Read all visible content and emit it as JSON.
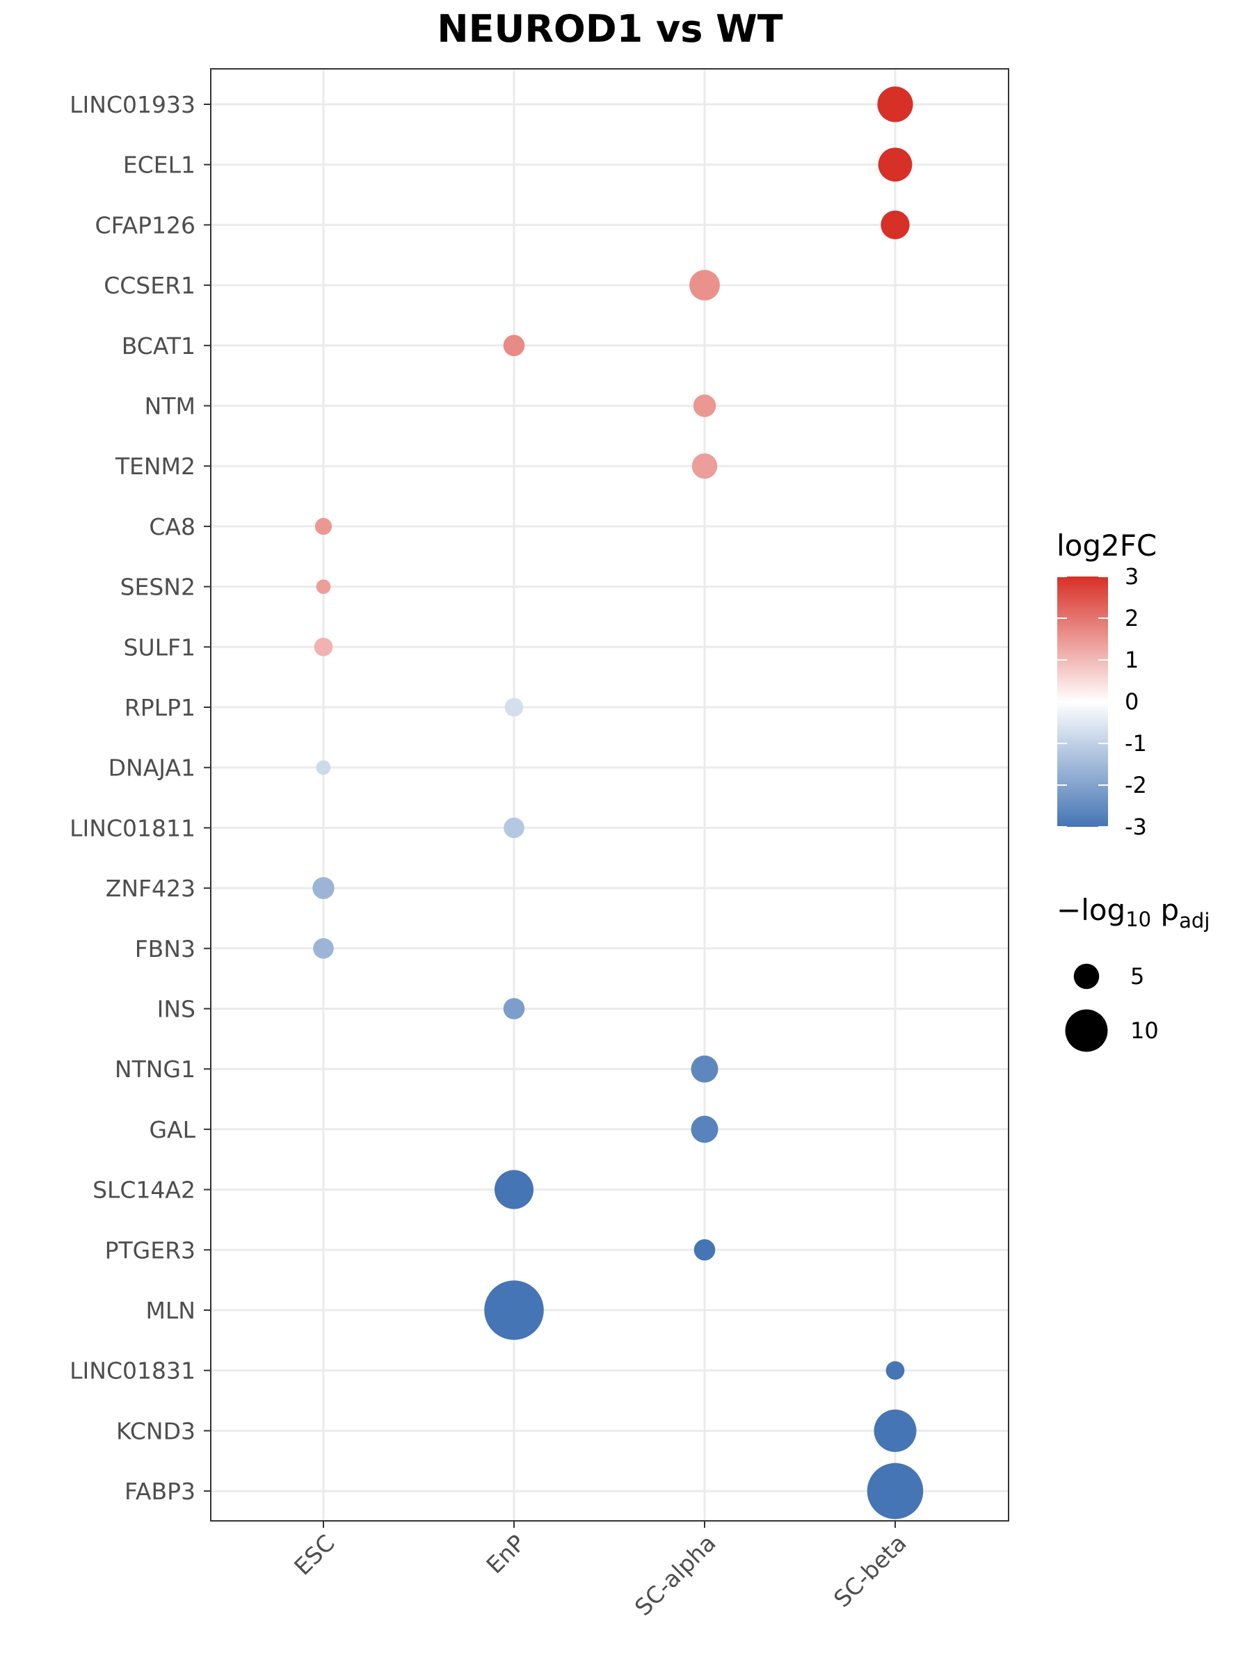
{
  "chart_data": {
    "type": "scatter",
    "title": "NEUROD1 vs WT",
    "xlabel": "",
    "ylabel": "",
    "categories_x": [
      "ESC",
      "EnP",
      "SC-alpha",
      "SC-beta"
    ],
    "categories_y": [
      "LINC01933",
      "ECEL1",
      "CFAP126",
      "CCSER1",
      "BCAT1",
      "NTM",
      "TENM2",
      "CA8",
      "SESN2",
      "SULF1",
      "RPLP1",
      "DNAJA1",
      "LINC01811",
      "ZNF423",
      "FBN3",
      "INS",
      "NTNG1",
      "GAL",
      "SLC14A2",
      "PTGER3",
      "MLN",
      "LINC01831",
      "KCND3",
      "FABP3"
    ],
    "points": [
      {
        "gene": "LINC01933",
        "cell": "SC-beta",
        "log2FC": 3.0,
        "neglog10_padj": 8.0
      },
      {
        "gene": "ECEL1",
        "cell": "SC-beta",
        "log2FC": 3.0,
        "neglog10_padj": 7.5
      },
      {
        "gene": "CFAP126",
        "cell": "SC-beta",
        "log2FC": 3.0,
        "neglog10_padj": 6.0
      },
      {
        "gene": "CCSER1",
        "cell": "SC-alpha",
        "log2FC": 1.6,
        "neglog10_padj": 6.5
      },
      {
        "gene": "BCAT1",
        "cell": "EnP",
        "log2FC": 1.7,
        "neglog10_padj": 3.8
      },
      {
        "gene": "NTM",
        "cell": "SC-alpha",
        "log2FC": 1.5,
        "neglog10_padj": 4.2
      },
      {
        "gene": "TENM2",
        "cell": "SC-alpha",
        "log2FC": 1.4,
        "neglog10_padj": 5.0
      },
      {
        "gene": "CA8",
        "cell": "ESC",
        "log2FC": 1.5,
        "neglog10_padj": 2.5
      },
      {
        "gene": "SESN2",
        "cell": "ESC",
        "log2FC": 1.4,
        "neglog10_padj": 1.8
      },
      {
        "gene": "SULF1",
        "cell": "ESC",
        "log2FC": 1.1,
        "neglog10_padj": 3.0
      },
      {
        "gene": "RPLP1",
        "cell": "EnP",
        "log2FC": -0.7,
        "neglog10_padj": 3.0
      },
      {
        "gene": "DNAJA1",
        "cell": "ESC",
        "log2FC": -0.8,
        "neglog10_padj": 1.8
      },
      {
        "gene": "LINC01811",
        "cell": "EnP",
        "log2FC": -1.2,
        "neglog10_padj": 3.6
      },
      {
        "gene": "ZNF423",
        "cell": "ESC",
        "log2FC": -1.6,
        "neglog10_padj": 4.0
      },
      {
        "gene": "FBN3",
        "cell": "ESC",
        "log2FC": -1.6,
        "neglog10_padj": 3.6
      },
      {
        "gene": "INS",
        "cell": "EnP",
        "log2FC": -2.1,
        "neglog10_padj": 3.8
      },
      {
        "gene": "NTNG1",
        "cell": "SC-alpha",
        "log2FC": -2.6,
        "neglog10_padj": 5.5
      },
      {
        "gene": "GAL",
        "cell": "SC-alpha",
        "log2FC": -2.7,
        "neglog10_padj": 5.5
      },
      {
        "gene": "SLC14A2",
        "cell": "EnP",
        "log2FC": -3.0,
        "neglog10_padj": 9.0
      },
      {
        "gene": "PTGER3",
        "cell": "SC-alpha",
        "log2FC": -3.0,
        "neglog10_padj": 3.8
      },
      {
        "gene": "MLN",
        "cell": "EnP",
        "log2FC": -3.0,
        "neglog10_padj": 15.0
      },
      {
        "gene": "LINC01831",
        "cell": "SC-beta",
        "log2FC": -3.0,
        "neglog10_padj": 3.0
      },
      {
        "gene": "KCND3",
        "cell": "SC-beta",
        "log2FC": -3.0,
        "neglog10_padj": 10.0
      },
      {
        "gene": "FABP3",
        "cell": "SC-beta",
        "log2FC": -3.0,
        "neglog10_padj": 14.0
      }
    ],
    "color_scale": {
      "title": "log2FC",
      "min": -3,
      "max": 3,
      "low_color": "#4575b4",
      "mid_color": "#ffffff",
      "high_color": "#d73027",
      "ticks": [
        "3",
        "2",
        "1",
        "0",
        "-1",
        "-2",
        "-3"
      ]
    },
    "size_scale": {
      "title_main": "−log",
      "title_sub": "10",
      "title_p": " p",
      "title_adj": "adj",
      "legend_values": [
        5,
        10
      ],
      "legend_labels": [
        "5",
        "10"
      ]
    },
    "grid": true,
    "legend_position": "right"
  }
}
